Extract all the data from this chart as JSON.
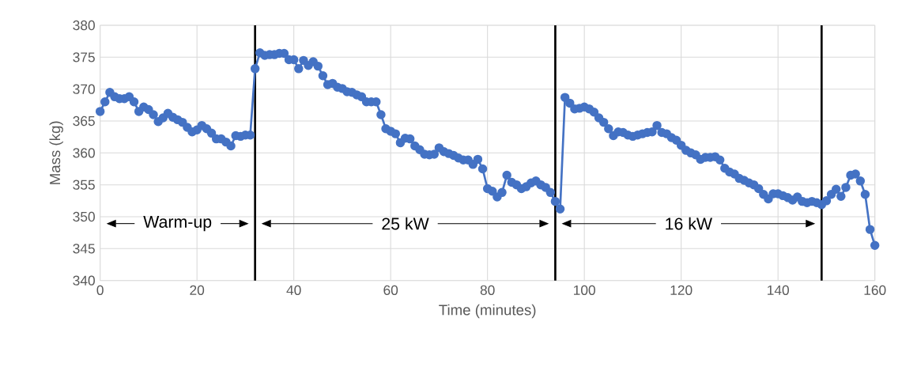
{
  "chart_data": {
    "type": "line",
    "xlabel": "Time (minutes)",
    "ylabel": "Mass (kg)",
    "x": [
      0,
      1,
      2,
      3,
      4,
      5,
      6,
      7,
      8,
      9,
      10,
      11,
      12,
      13,
      14,
      15,
      16,
      17,
      18,
      19,
      20,
      21,
      22,
      23,
      24,
      25,
      26,
      27,
      28,
      29,
      30,
      31,
      32,
      33,
      34,
      35,
      36,
      37,
      38,
      39,
      40,
      41,
      42,
      43,
      44,
      45,
      46,
      47,
      48,
      49,
      50,
      51,
      52,
      53,
      54,
      55,
      56,
      57,
      58,
      59,
      60,
      61,
      62,
      63,
      64,
      65,
      66,
      67,
      68,
      69,
      70,
      71,
      72,
      73,
      74,
      75,
      76,
      77,
      78,
      79,
      80,
      81,
      82,
      83,
      84,
      85,
      86,
      87,
      88,
      89,
      90,
      91,
      92,
      93,
      94,
      95,
      96,
      97,
      98,
      99,
      100,
      101,
      102,
      103,
      104,
      105,
      106,
      107,
      108,
      109,
      110,
      111,
      112,
      113,
      114,
      115,
      116,
      117,
      118,
      119,
      120,
      121,
      122,
      123,
      124,
      125,
      126,
      127,
      128,
      129,
      130,
      131,
      132,
      133,
      134,
      135,
      136,
      137,
      138,
      139,
      140,
      141,
      142,
      143,
      144,
      145,
      146,
      147,
      148,
      149,
      150,
      151,
      152,
      153,
      154,
      155,
      156,
      157,
      158,
      159,
      160
    ],
    "series": [
      {
        "color": "#4472c4",
        "values": [
          366.5,
          368,
          369.5,
          368.8,
          368.5,
          368.5,
          368.8,
          368,
          366.5,
          367.2,
          366.8,
          366,
          364.9,
          365.5,
          366.2,
          365.6,
          365.2,
          364.8,
          364,
          363.3,
          363.6,
          364.3,
          363.8,
          363.1,
          362.2,
          362.2,
          361.7,
          361.1,
          362.7,
          362.6,
          362.8,
          362.8,
          373.2,
          375.7,
          375.3,
          375.4,
          375.4,
          375.6,
          375.6,
          374.6,
          374.6,
          373.2,
          374.5,
          373.7,
          374.3,
          373.6,
          372.1,
          370.7,
          370.9,
          370.3,
          370.1,
          369.6,
          369.5,
          369.1,
          368.8,
          368,
          368,
          368,
          366,
          363.8,
          363.4,
          363,
          361.6,
          362.3,
          362.2,
          361.1,
          360.5,
          359.8,
          359.7,
          359.8,
          360.8,
          360.2,
          359.9,
          359.6,
          359.2,
          358.9,
          358.9,
          358.2,
          359,
          357.5,
          354.4,
          354,
          353.1,
          353.8,
          356.5,
          355.4,
          355,
          354.4,
          354.7,
          355.3,
          355.6,
          355,
          354.6,
          353.8,
          352.4,
          351.2,
          368.7,
          367.8,
          366.9,
          367,
          367.2,
          366.9,
          366.4,
          365.5,
          364.8,
          363.8,
          362.7,
          363.3,
          363.2,
          362.8,
          362.6,
          362.8,
          363,
          363.2,
          363.3,
          364.3,
          363.2,
          363,
          362.4,
          362,
          361.2,
          360.4,
          360,
          359.7,
          359,
          359.3,
          359.3,
          359.4,
          358.9,
          357.6,
          357,
          356.7,
          356,
          355.7,
          355.3,
          355,
          354.4,
          353.5,
          352.8,
          353.6,
          353.6,
          353.3,
          353,
          352.6,
          353.1,
          352.4,
          352.2,
          352.4,
          352.2,
          351.9,
          352.5,
          353.5,
          354.3,
          353.2,
          354.6,
          356.5,
          356.7,
          355.6,
          353.5,
          348,
          345.5
        ]
      }
    ],
    "xlim": [
      0,
      160
    ],
    "ylim": [
      340,
      380
    ],
    "xticks": [
      0,
      20,
      40,
      60,
      80,
      100,
      120,
      140,
      160
    ],
    "yticks": [
      340,
      345,
      350,
      355,
      360,
      365,
      370,
      375,
      380
    ],
    "grid": true,
    "marker": "circle",
    "line_style": "solid",
    "ref_lines": [
      {
        "axis": "x",
        "value": 32,
        "color": "#000000"
      },
      {
        "axis": "x",
        "value": 94,
        "color": "#000000"
      },
      {
        "axis": "x",
        "value": 149,
        "color": "#000000"
      }
    ],
    "annotations": [
      "Warm-up",
      "25 kW",
      "16 kW"
    ]
  }
}
